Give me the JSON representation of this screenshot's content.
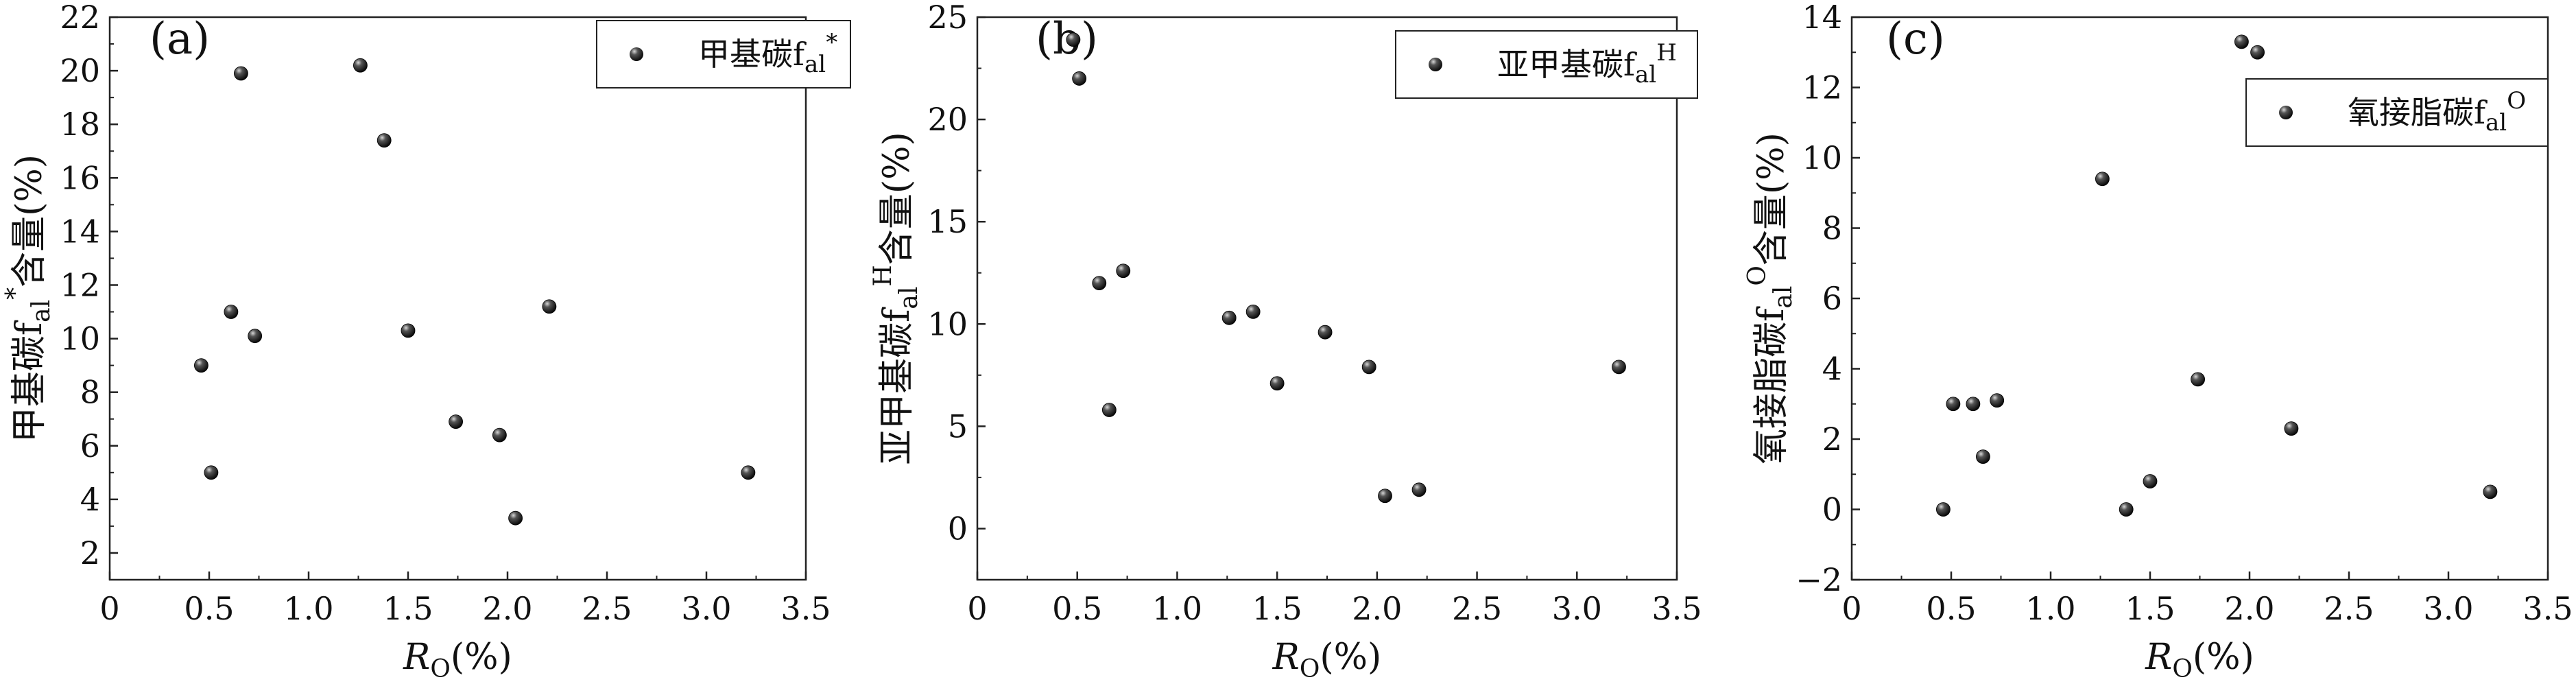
{
  "colors": {
    "axis": "#222222",
    "marker": "#1a1a1a",
    "background": "#ffffff"
  },
  "chart_data": [
    {
      "type": "scatter",
      "panel_label": "(a)",
      "xlabel": "R",
      "xlabel_sub": "O",
      "xlabel_unit": "(%)",
      "ylabel": "甲基碳f",
      "ylabel_sub": "al",
      "ylabel_sup": "*",
      "ylabel_suffix": "含量(%)",
      "xlim": [
        0,
        3.5
      ],
      "ylim": [
        1,
        22
      ],
      "xticks": [
        "0",
        "0.5",
        "1.0",
        "1.5",
        "2.0",
        "2.5",
        "3.0",
        "3.5"
      ],
      "yticks": [
        "2",
        "4",
        "6",
        "8",
        "10",
        "12",
        "14",
        "16",
        "18",
        "20",
        "22"
      ],
      "legend_position": "top-right",
      "series": [
        {
          "name": "甲基碳f",
          "name_sub": "al",
          "name_sup": "*",
          "x": [
            0.46,
            0.51,
            0.61,
            0.66,
            0.73,
            1.26,
            1.38,
            1.5,
            1.74,
            1.96,
            2.04,
            2.21,
            3.21
          ],
          "y": [
            9.0,
            5.0,
            11.0,
            19.9,
            10.1,
            20.2,
            17.4,
            10.3,
            6.9,
            6.4,
            3.3,
            11.2,
            5.0
          ]
        }
      ]
    },
    {
      "type": "scatter",
      "panel_label": "(b)",
      "xlabel": "R",
      "xlabel_sub": "O",
      "xlabel_unit": "(%)",
      "ylabel": "亚甲基碳f",
      "ylabel_sub": "al",
      "ylabel_sup": "H",
      "ylabel_suffix": "含量(%)",
      "xlim": [
        0,
        3.5
      ],
      "ylim": [
        -2.5,
        25
      ],
      "xticks": [
        "0",
        "0.5",
        "1.0",
        "1.5",
        "2.0",
        "2.5",
        "3.0",
        "3.5"
      ],
      "yticks": [
        "0",
        "5",
        "10",
        "15",
        "20",
        "25"
      ],
      "legend_position": "top-right",
      "series": [
        {
          "name": "亚甲基碳f",
          "name_sub": "al",
          "name_sup": "H",
          "x": [
            0.48,
            0.51,
            0.61,
            0.66,
            0.73,
            1.26,
            1.38,
            1.5,
            1.74,
            1.96,
            2.04,
            2.21,
            3.21
          ],
          "y": [
            23.9,
            22.0,
            12.0,
            5.8,
            12.6,
            10.3,
            10.6,
            7.1,
            9.6,
            7.9,
            1.6,
            1.9,
            7.9
          ]
        }
      ]
    },
    {
      "type": "scatter",
      "panel_label": "(c)",
      "xlabel": "R",
      "xlabel_sub": "O",
      "xlabel_unit": "(%)",
      "ylabel": "氧接脂碳f",
      "ylabel_sub": "al",
      "ylabel_sup": "O",
      "ylabel_suffix": "含量(%)",
      "xlim": [
        0,
        3.5
      ],
      "ylim": [
        -2,
        14
      ],
      "xticks": [
        "0",
        "0.5",
        "1.0",
        "1.5",
        "2.0",
        "2.5",
        "3.0",
        "3.5"
      ],
      "yticks": [
        "−2",
        "0",
        "2",
        "4",
        "6",
        "8",
        "10",
        "12",
        "14"
      ],
      "legend_position": "top-right",
      "series": [
        {
          "name": "氧接脂碳f",
          "name_sub": "al",
          "name_sup": "O",
          "x": [
            0.46,
            0.51,
            0.61,
            0.66,
            0.73,
            1.26,
            1.38,
            1.5,
            1.74,
            1.96,
            2.04,
            2.21,
            3.21
          ],
          "y": [
            0.0,
            3.0,
            3.0,
            1.5,
            3.1,
            9.4,
            0.0,
            0.8,
            3.7,
            13.3,
            13.0,
            2.3,
            0.5
          ]
        }
      ]
    }
  ]
}
